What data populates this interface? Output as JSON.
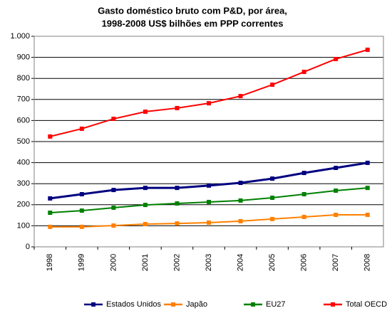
{
  "chart_data": {
    "type": "line",
    "title": "Gasto doméstico bruto com P&D, por área,",
    "subtitle": "1998-2008  US$ bilhões em PPP correntes",
    "categories": [
      "1998",
      "1999",
      "2000",
      "2001",
      "2002",
      "2003",
      "2004",
      "2005",
      "2006",
      "2007",
      "2008"
    ],
    "series": [
      {
        "name": "Estados Unidos",
        "color": "#000080",
        "values": [
          230,
          250,
          270,
          280,
          280,
          291,
          304,
          324,
          351,
          375,
          399
        ]
      },
      {
        "name": "Japão",
        "color": "#ff8000",
        "values": [
          95,
          95,
          101,
          108,
          111,
          115,
          122,
          132,
          142,
          152,
          152
        ]
      },
      {
        "name": "EU27",
        "color": "#008000",
        "values": [
          162,
          172,
          186,
          199,
          206,
          213,
          220,
          233,
          250,
          267,
          280
        ]
      },
      {
        "name": "Total OECD",
        "color": "#ff0000",
        "values": [
          524,
          561,
          608,
          642,
          659,
          682,
          716,
          770,
          831,
          892,
          936
        ]
      }
    ],
    "ylim": [
      0,
      1000
    ],
    "yticks": [
      0,
      100,
      200,
      300,
      400,
      500,
      600,
      700,
      800,
      900,
      {
        "value": 1000,
        "label": "1.000"
      }
    ],
    "grid": true,
    "legend": "bottom"
  }
}
